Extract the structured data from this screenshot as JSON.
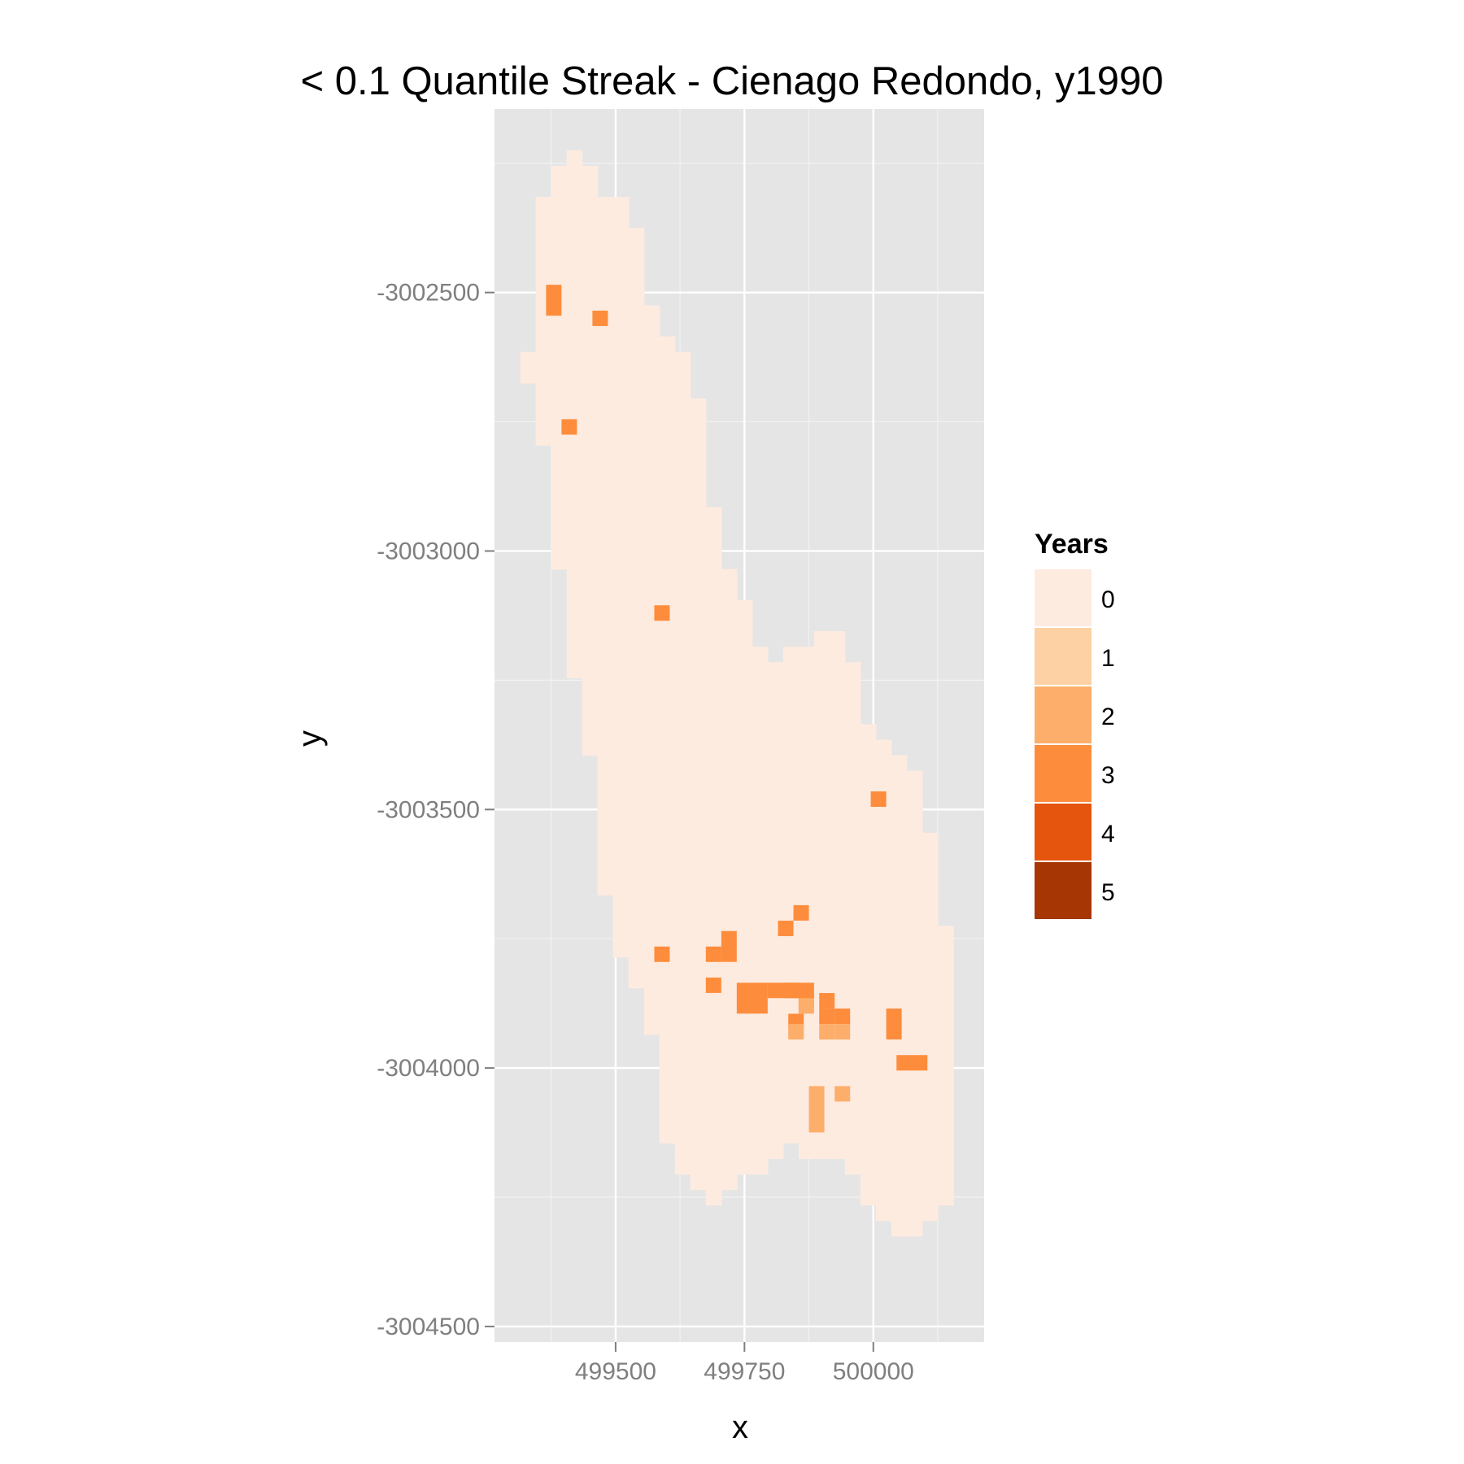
{
  "chart_data": {
    "type": "heatmap",
    "title": "< 0.1 Quantile Streak - Cienago Redondo, y1990",
    "xlabel": "x",
    "ylabel": "y",
    "xlim": [
      499265,
      500215
    ],
    "ylim": [
      -3004530,
      -3002145
    ],
    "x_ticks": [
      499500,
      499750,
      500000
    ],
    "x_tick_labels": [
      "499500",
      "499750",
      "500000"
    ],
    "y_ticks": [
      -3002500,
      -3003000,
      -3003500,
      -3004000,
      -3004500
    ],
    "y_tick_labels": [
      "-3002500",
      "-3003000",
      "-3003500",
      "-3004000",
      "-3004500"
    ],
    "grid": true,
    "cell_size": 30,
    "legend": {
      "title": "Years",
      "position": "right",
      "entries": [
        {
          "label": "0",
          "value": 0,
          "color": "#FEEBE0"
        },
        {
          "label": "1",
          "value": 1,
          "color": "#FDD1A4"
        },
        {
          "label": "2",
          "value": 2,
          "color": "#FDAE6B"
        },
        {
          "label": "3",
          "value": 3,
          "color": "#FD8D3C"
        },
        {
          "label": "4",
          "value": 4,
          "color": "#E6550D"
        },
        {
          "label": "5",
          "value": 5,
          "color": "#A63603"
        }
      ]
    },
    "region_rows": [
      {
        "y": -3002240,
        "x": [
          [
            499420,
            499420
          ]
        ]
      },
      {
        "y": -3002270,
        "x": [
          [
            499390,
            499450
          ]
        ]
      },
      {
        "y": -3002300,
        "x": [
          [
            499390,
            499450
          ]
        ]
      },
      {
        "y": -3002330,
        "x": [
          [
            499360,
            499510
          ]
        ]
      },
      {
        "y": -3002360,
        "x": [
          [
            499360,
            499510
          ]
        ]
      },
      {
        "y": -3002390,
        "x": [
          [
            499360,
            499540
          ]
        ]
      },
      {
        "y": -3002420,
        "x": [
          [
            499360,
            499540
          ]
        ]
      },
      {
        "y": -3002450,
        "x": [
          [
            499360,
            499540
          ]
        ]
      },
      {
        "y": -3002480,
        "x": [
          [
            499360,
            499540
          ]
        ]
      },
      {
        "y": -3002510,
        "x": [
          [
            499360,
            499540
          ]
        ]
      },
      {
        "y": -3002540,
        "x": [
          [
            499360,
            499570
          ]
        ]
      },
      {
        "y": -3002570,
        "x": [
          [
            499360,
            499570
          ]
        ]
      },
      {
        "y": -3002600,
        "x": [
          [
            499360,
            499600
          ]
        ]
      },
      {
        "y": -3002630,
        "x": [
          [
            499330,
            499630
          ]
        ]
      },
      {
        "y": -3002660,
        "x": [
          [
            499330,
            499630
          ]
        ]
      },
      {
        "y": -3002690,
        "x": [
          [
            499360,
            499630
          ]
        ]
      },
      {
        "y": -3002720,
        "x": [
          [
            499360,
            499660
          ]
        ]
      },
      {
        "y": -3002750,
        "x": [
          [
            499360,
            499660
          ]
        ]
      },
      {
        "y": -3002780,
        "x": [
          [
            499360,
            499660
          ]
        ]
      },
      {
        "y": -3002810,
        "x": [
          [
            499390,
            499660
          ]
        ]
      },
      {
        "y": -3002840,
        "x": [
          [
            499390,
            499660
          ]
        ]
      },
      {
        "y": -3002870,
        "x": [
          [
            499390,
            499660
          ]
        ]
      },
      {
        "y": -3002900,
        "x": [
          [
            499390,
            499660
          ]
        ]
      },
      {
        "y": -3002930,
        "x": [
          [
            499390,
            499690
          ]
        ]
      },
      {
        "y": -3002960,
        "x": [
          [
            499390,
            499690
          ]
        ]
      },
      {
        "y": -3002990,
        "x": [
          [
            499390,
            499690
          ]
        ]
      },
      {
        "y": -3003020,
        "x": [
          [
            499390,
            499690
          ]
        ]
      },
      {
        "y": -3003050,
        "x": [
          [
            499420,
            499720
          ]
        ]
      },
      {
        "y": -3003080,
        "x": [
          [
            499420,
            499720
          ]
        ]
      },
      {
        "y": -3003110,
        "x": [
          [
            499420,
            499750
          ]
        ]
      },
      {
        "y": -3003140,
        "x": [
          [
            499420,
            499750
          ]
        ]
      },
      {
        "y": -3003170,
        "x": [
          [
            499420,
            499750
          ],
          [
            499900,
            499930
          ]
        ]
      },
      {
        "y": -3003200,
        "x": [
          [
            499420,
            499780
          ],
          [
            499840,
            499930
          ]
        ]
      },
      {
        "y": -3003230,
        "x": [
          [
            499420,
            499810
          ],
          [
            499840,
            499960
          ]
        ]
      },
      {
        "y": -3003260,
        "x": [
          [
            499450,
            499960
          ]
        ]
      },
      {
        "y": -3003290,
        "x": [
          [
            499450,
            499960
          ]
        ]
      },
      {
        "y": -3003320,
        "x": [
          [
            499450,
            499960
          ]
        ]
      },
      {
        "y": -3003350,
        "x": [
          [
            499450,
            499990
          ]
        ]
      },
      {
        "y": -3003380,
        "x": [
          [
            499450,
            500020
          ]
        ]
      },
      {
        "y": -3003410,
        "x": [
          [
            499480,
            500050
          ]
        ]
      },
      {
        "y": -3003440,
        "x": [
          [
            499480,
            500080
          ]
        ]
      },
      {
        "y": -3003470,
        "x": [
          [
            499480,
            500080
          ]
        ]
      },
      {
        "y": -3003500,
        "x": [
          [
            499480,
            500080
          ]
        ]
      },
      {
        "y": -3003530,
        "x": [
          [
            499480,
            500080
          ]
        ]
      },
      {
        "y": -3003560,
        "x": [
          [
            499480,
            500110
          ]
        ]
      },
      {
        "y": -3003590,
        "x": [
          [
            499480,
            500110
          ]
        ]
      },
      {
        "y": -3003620,
        "x": [
          [
            499480,
            500110
          ]
        ]
      },
      {
        "y": -3003650,
        "x": [
          [
            499480,
            500110
          ]
        ]
      },
      {
        "y": -3003680,
        "x": [
          [
            499510,
            500110
          ]
        ]
      },
      {
        "y": -3003710,
        "x": [
          [
            499510,
            500110
          ]
        ]
      },
      {
        "y": -3003740,
        "x": [
          [
            499510,
            500140
          ]
        ]
      },
      {
        "y": -3003770,
        "x": [
          [
            499510,
            500140
          ]
        ]
      },
      {
        "y": -3003800,
        "x": [
          [
            499540,
            500140
          ]
        ]
      },
      {
        "y": -3003830,
        "x": [
          [
            499540,
            500140
          ]
        ]
      },
      {
        "y": -3003860,
        "x": [
          [
            499570,
            500140
          ]
        ]
      },
      {
        "y": -3003890,
        "x": [
          [
            499570,
            500140
          ]
        ]
      },
      {
        "y": -3003920,
        "x": [
          [
            499570,
            500140
          ]
        ]
      },
      {
        "y": -3003950,
        "x": [
          [
            499600,
            500140
          ]
        ]
      },
      {
        "y": -3003980,
        "x": [
          [
            499600,
            500140
          ]
        ]
      },
      {
        "y": -3004010,
        "x": [
          [
            499600,
            500140
          ]
        ]
      },
      {
        "y": -3004040,
        "x": [
          [
            499600,
            500140
          ]
        ]
      },
      {
        "y": -3004070,
        "x": [
          [
            499600,
            500140
          ]
        ]
      },
      {
        "y": -3004100,
        "x": [
          [
            499600,
            500140
          ]
        ]
      },
      {
        "y": -3004130,
        "x": [
          [
            499600,
            500140
          ]
        ]
      },
      {
        "y": -3004160,
        "x": [
          [
            499630,
            499810
          ],
          [
            499870,
            500140
          ]
        ]
      },
      {
        "y": -3004190,
        "x": [
          [
            499630,
            499780
          ],
          [
            499960,
            500140
          ]
        ]
      },
      {
        "y": -3004220,
        "x": [
          [
            499660,
            499720
          ],
          [
            499990,
            500140
          ]
        ]
      },
      {
        "y": -3004250,
        "x": [
          [
            499690,
            499690
          ],
          [
            499990,
            500140
          ]
        ]
      },
      {
        "y": -3004280,
        "x": [
          [
            500020,
            500110
          ]
        ]
      },
      {
        "y": -3004310,
        "x": [
          [
            500050,
            500080
          ]
        ]
      }
    ],
    "streak_cells": [
      {
        "x": 499380,
        "y": -3002500,
        "w": 30,
        "h": 60,
        "value": 3
      },
      {
        "x": 499470,
        "y": -3002550,
        "w": 30,
        "h": 30,
        "value": 3
      },
      {
        "x": 499410,
        "y": -3002760,
        "w": 30,
        "h": 30,
        "value": 3
      },
      {
        "y": -3003120,
        "x": 499590,
        "w": 30,
        "h": 30,
        "value": 3
      },
      {
        "x": 500010,
        "y": -3003480,
        "w": 30,
        "h": 30,
        "value": 3
      },
      {
        "x": 499860,
        "y": -3003700,
        "w": 30,
        "h": 30,
        "value": 3
      },
      {
        "x": 499830,
        "y": -3003730,
        "w": 30,
        "h": 30,
        "value": 3
      },
      {
        "x": 499720,
        "y": -3003750,
        "w": 30,
        "h": 60,
        "value": 3
      },
      {
        "x": 499590,
        "y": -3003780,
        "w": 30,
        "h": 30,
        "value": 3
      },
      {
        "x": 499690,
        "y": -3003780,
        "w": 30,
        "h": 30,
        "value": 3
      },
      {
        "x": 499690,
        "y": -3003840,
        "w": 30,
        "h": 30,
        "value": 3
      },
      {
        "x": 499750,
        "y": -3003850,
        "w": 60,
        "h": 60,
        "value": 3
      },
      {
        "x": 499810,
        "y": -3003850,
        "w": 60,
        "h": 30,
        "value": 3
      },
      {
        "x": 499870,
        "y": -3003870,
        "w": 30,
        "h": 30,
        "value": 3
      },
      {
        "x": 499840,
        "y": -3003850,
        "w": 60,
        "h": 30,
        "value": 3
      },
      {
        "x": 499870,
        "y": -3003880,
        "w": 30,
        "h": 30,
        "value": 2
      },
      {
        "x": 499850,
        "y": -3003910,
        "w": 30,
        "h": 30,
        "value": 3
      },
      {
        "x": 499850,
        "y": -3003930,
        "w": 30,
        "h": 30,
        "value": 2
      },
      {
        "x": 499910,
        "y": -3003870,
        "w": 30,
        "h": 30,
        "value": 3
      },
      {
        "x": 499910,
        "y": -3003900,
        "w": 30,
        "h": 30,
        "value": 3
      },
      {
        "x": 499910,
        "y": -3003930,
        "w": 30,
        "h": 30,
        "value": 2
      },
      {
        "x": 499940,
        "y": -3003900,
        "w": 30,
        "h": 30,
        "value": 3
      },
      {
        "x": 499940,
        "y": -3003930,
        "w": 30,
        "h": 30,
        "value": 2
      },
      {
        "x": 500040,
        "y": -3003900,
        "w": 30,
        "h": 60,
        "value": 3
      },
      {
        "x": 500060,
        "y": -3003990,
        "w": 60,
        "h": 30,
        "value": 3
      },
      {
        "x": 499890,
        "y": -3004050,
        "w": 30,
        "h": 90,
        "value": 2
      },
      {
        "x": 499940,
        "y": -3004050,
        "w": 30,
        "h": 30,
        "value": 2
      }
    ]
  }
}
